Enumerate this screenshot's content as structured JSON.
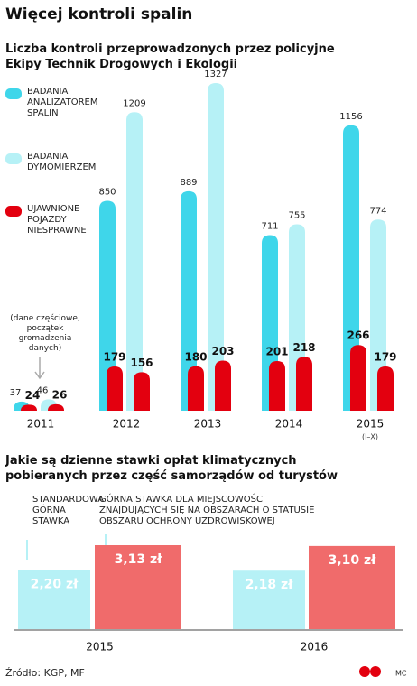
{
  "title": "Więcej kontroli spalin",
  "source": "Źródło: KGP, MF",
  "logo": "MC",
  "chart_data": [
    {
      "type": "grouped-bar",
      "title": "Liczba kontroli przeprowadzonych przez policyjne Ekipy Technik Drogowych i Ekologii",
      "categories": [
        "2011",
        "2012",
        "2013",
        "2014",
        "2015"
      ],
      "category_notes": [
        null,
        null,
        null,
        null,
        "(I–X)"
      ],
      "annotation": "(dane częściowe, początek gromadzenia danych)",
      "series": [
        {
          "name": "BADANIA ANALIZATOREM SPALIN",
          "color": "#3fd6ea",
          "values": [
            37,
            850,
            889,
            711,
            1156
          ]
        },
        {
          "name": "BADANIA DYMOMIERZEM",
          "color": "#b6f1f6",
          "values": [
            46,
            1209,
            1327,
            755,
            774
          ]
        }
      ],
      "defects": {
        "name": "UJAWNIONE POJAZDY NIESPRAWNE",
        "color": "#e3000f",
        "values": [
          [
            24,
            179,
            180,
            201,
            266
          ],
          [
            26,
            156,
            203,
            218,
            179
          ]
        ]
      }
    },
    {
      "type": "bar",
      "title": "Jakie są dzienne stawki opłat klimatycznych pobieranych przez część samorządów od turystów",
      "categories": [
        "2015",
        "2016"
      ],
      "series": [
        {
          "name": "STANDARDOWA GÓRNA STAWKA",
          "color": "#b6f1f6",
          "values": [
            2.2,
            2.18
          ],
          "value_labels": [
            "2,20 zł",
            "2,18 zł"
          ]
        },
        {
          "name": "GÓRNA STAWKA DLA MIEJSCOWOŚCI ZNAJDUJĄCYCH SIĘ NA OBSZARACH O STATUSIE OBSZARU OCHRONY UZDROWISKOWEJ",
          "color": "#f06b6b",
          "values": [
            3.13,
            3.1
          ],
          "value_labels": [
            "3,13 zł",
            "3,10 zł"
          ]
        }
      ]
    }
  ]
}
